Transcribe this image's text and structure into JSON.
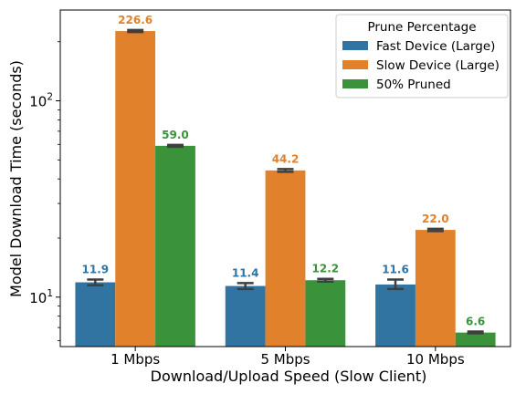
{
  "chart_data": {
    "type": "bar",
    "title": "",
    "xlabel": "Download/Upload Speed (Slow Client)",
    "ylabel": "Model Download Time (seconds)",
    "yscale": "log",
    "ylim": [
      5.6,
      290
    ],
    "y_ticks": [
      {
        "value": 10,
        "base": "10",
        "exp": "1"
      },
      {
        "value": 100,
        "base": "10",
        "exp": "2"
      }
    ],
    "categories": [
      "1 Mbps",
      "5 Mbps",
      "10 Mbps"
    ],
    "legend_title": "Prune Percentage",
    "legend_position": "top-right",
    "grid": false,
    "series": [
      {
        "name": "Fast Device (Large)",
        "color": "#3274a1",
        "values": [
          11.9,
          11.4,
          11.6
        ],
        "labels": [
          "11.9",
          "11.4",
          "11.6"
        ],
        "error": [
          [
            11.5,
            12.3
          ],
          [
            11.0,
            11.8
          ],
          [
            11.0,
            12.3
          ]
        ]
      },
      {
        "name": "Slow Device (Large)",
        "color": "#e1812c",
        "values": [
          226.6,
          44.2,
          22.0
        ],
        "labels": [
          "226.6",
          "44.2",
          "22.0"
        ],
        "error": [
          [
            224.0,
            229.5
          ],
          [
            43.5,
            44.9
          ],
          [
            21.7,
            22.3
          ]
        ]
      },
      {
        "name": "50% Pruned",
        "color": "#3a923a",
        "values": [
          59.0,
          12.2,
          6.6
        ],
        "labels": [
          "59.0",
          "12.2",
          "6.6"
        ],
        "error": [
          [
            58.4,
            59.6
          ],
          [
            12.0,
            12.4
          ],
          [
            6.55,
            6.68
          ]
        ]
      }
    ]
  }
}
